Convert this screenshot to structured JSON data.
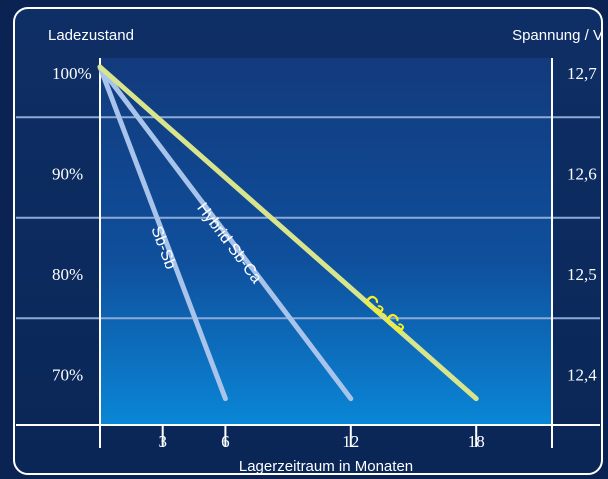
{
  "chart_data": {
    "type": "line",
    "left_axis_title": "Ladezustand",
    "right_axis_title": "Spannung / V",
    "xlabel": "Lagerzeitraum in Monaten",
    "x_ticks": [
      "3",
      "6",
      "12",
      "18"
    ],
    "y_ticks_left": [
      "100%",
      "90%",
      "80%",
      "70%"
    ],
    "y_ticks_right": [
      "12,7",
      "12,6",
      "12,5",
      "12,4"
    ],
    "grid": true,
    "series": [
      {
        "name": "Sb-Sb",
        "x": [
          0,
          6
        ],
        "y": [
          100,
          67
        ],
        "color": "#a9c4ea"
      },
      {
        "name": "Hybrid Sb-Ca",
        "x": [
          0,
          12
        ],
        "y": [
          100,
          67
        ],
        "color": "#a9c4ea"
      },
      {
        "name": "Ca-Ca",
        "x": [
          0,
          18
        ],
        "y": [
          100,
          67
        ],
        "color": "#d9e58c",
        "label_color": "#f5ef27"
      }
    ]
  }
}
